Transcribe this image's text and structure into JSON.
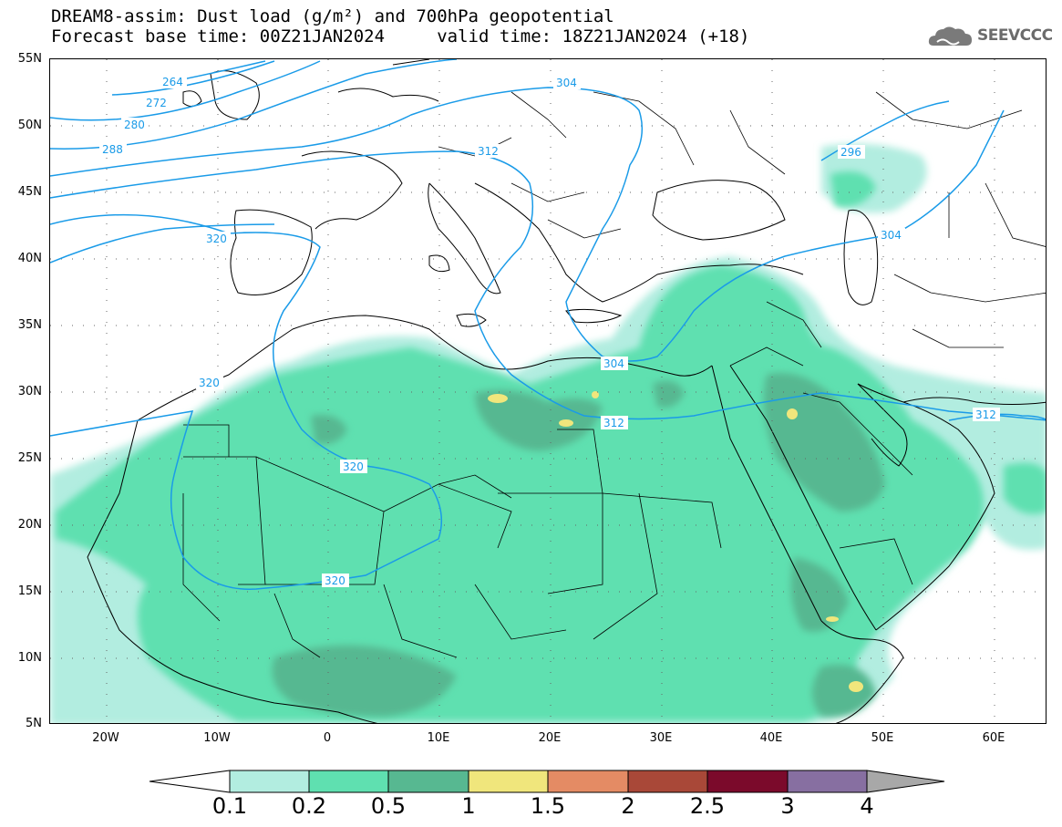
{
  "title": {
    "line1": "DREAM8-assim: Dust load (g/m²) and 700hPa geopotential",
    "line2": "Forecast base time: 00Z21JAN2024     valid time: 18Z21JAN2024 (+18)"
  },
  "logo": {
    "icon": "cloud-icon",
    "text": "SEEVCCC"
  },
  "map": {
    "lat_labels": [
      "55N",
      "50N",
      "45N",
      "40N",
      "35N",
      "30N",
      "25N",
      "20N",
      "15N",
      "10N",
      "5N"
    ],
    "lon_labels": [
      "20W",
      "10W",
      "0",
      "10E",
      "20E",
      "30E",
      "40E",
      "50E",
      "60E"
    ],
    "geopotential_contour_labels": [
      "264",
      "272",
      "280",
      "288",
      "296",
      "304",
      "304",
      "304",
      "312",
      "312",
      "312",
      "320",
      "320",
      "320",
      "320"
    ],
    "contour_color": "#1a9be8"
  },
  "colorbar": {
    "levels": [
      "0.1",
      "0.2",
      "0.5",
      "1",
      "1.5",
      "2",
      "2.5",
      "3",
      "4"
    ],
    "colors": [
      "#ffffff",
      "#b2ede0",
      "#5fe0b0",
      "#57b891",
      "#f0e67c",
      "#e48b64",
      "#a94838",
      "#7b0a2b",
      "#876fa1",
      "#a8a8a8"
    ]
  }
}
